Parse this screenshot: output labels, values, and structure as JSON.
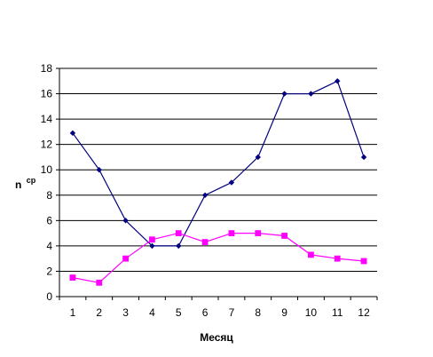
{
  "chart_data": {
    "type": "line",
    "xlabel": "Месяц",
    "ylabel": "n",
    "ylabel_superscript": "ср",
    "categories": [
      "1",
      "2",
      "3",
      "4",
      "5",
      "6",
      "7",
      "8",
      "9",
      "10",
      "11",
      "12"
    ],
    "ylim": [
      0,
      18
    ],
    "yticks": [
      "0",
      "2",
      "4",
      "6",
      "8",
      "10",
      "12",
      "14",
      "16",
      "18"
    ],
    "grid": "horizontal",
    "legend": "none",
    "series": [
      {
        "color": "#000080",
        "marker": "diamond",
        "values": [
          12.9,
          10,
          6,
          4,
          4,
          8,
          9,
          11,
          16,
          16,
          17,
          11
        ]
      },
      {
        "color": "#FF00FF",
        "marker": "square",
        "values": [
          1.5,
          1.1,
          3,
          4.5,
          5,
          4.3,
          5,
          5,
          4.8,
          3.3,
          3,
          2.8
        ]
      }
    ]
  }
}
